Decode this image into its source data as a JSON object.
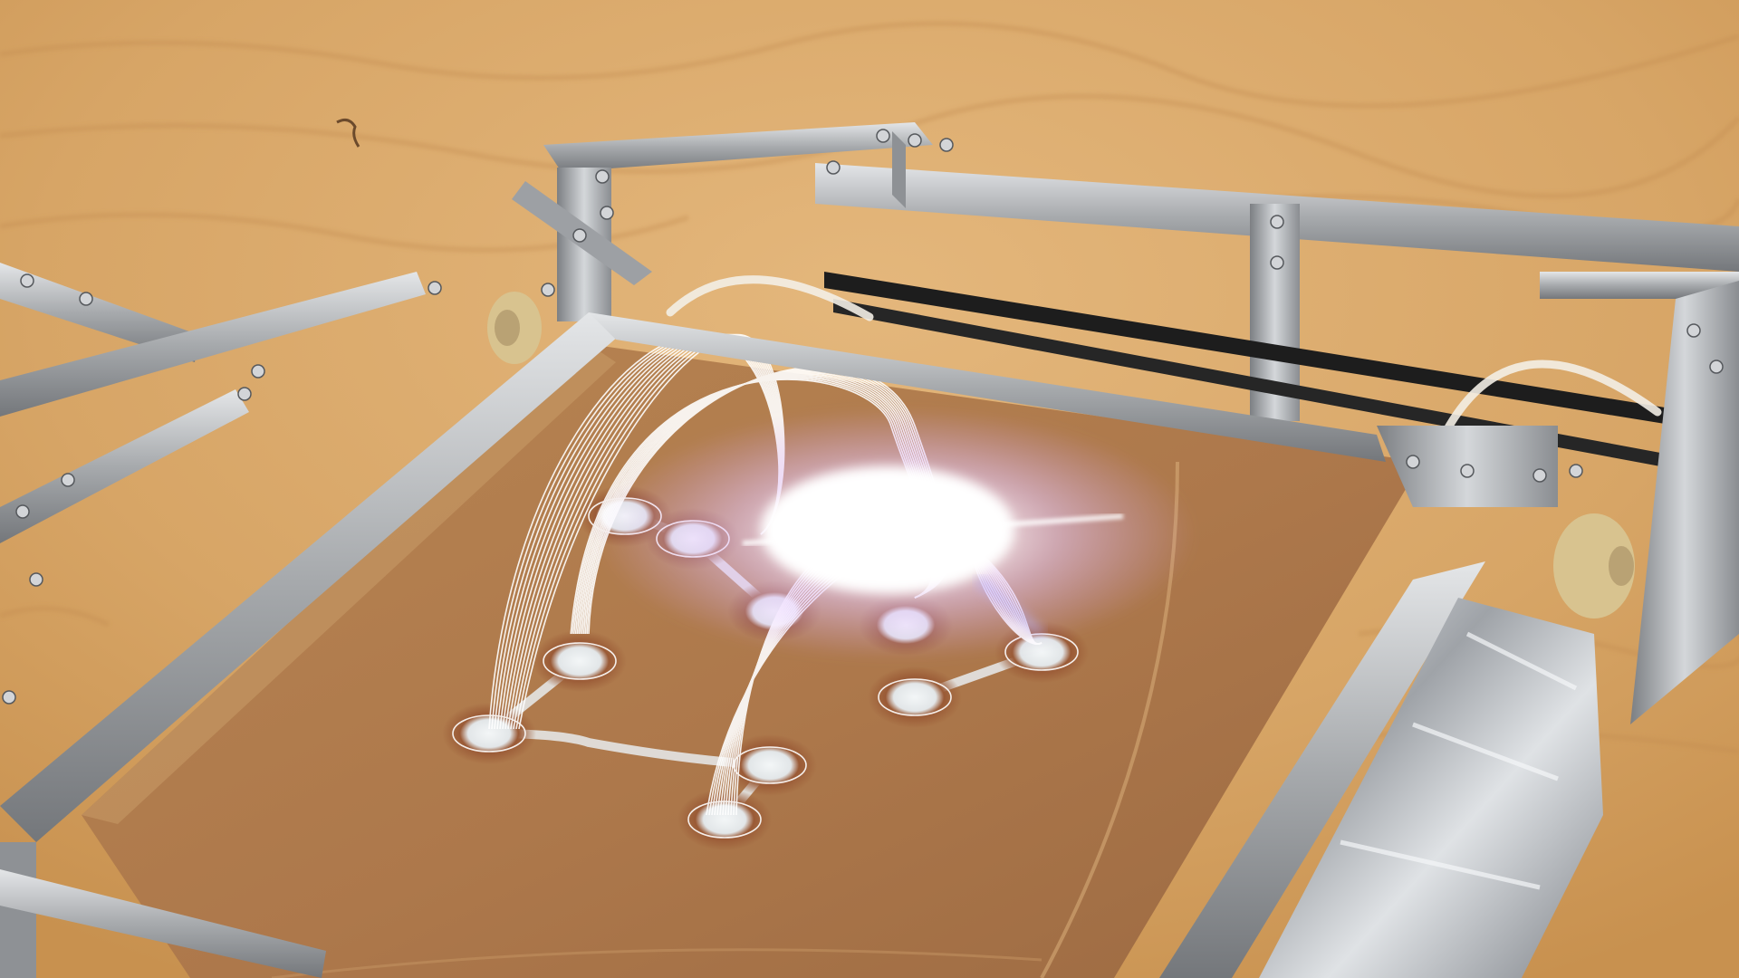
{
  "scene": {
    "subject": "sand-sintering-printer",
    "palette": {
      "sand_light": "#e0b277",
      "sand_mid": "#cf9a5a",
      "sand_shadow": "#b98446",
      "bed_sand": "#b07a4f",
      "bed_dark": "#8f5f3c",
      "frame_metal": "#a9acaf",
      "frame_dark": "#6d7074",
      "frame_light": "#dfe2e4",
      "belt": "#1d1d1d",
      "scorch": "#7a3a1e",
      "sintered": "#eef2f3",
      "wireframe": "#ffffff",
      "glare_core": "#ffffff",
      "glare_halo": "#e3c8ff",
      "foil": "#c9ccd0"
    },
    "print_nodes": 10,
    "wire_loops": 12
  }
}
